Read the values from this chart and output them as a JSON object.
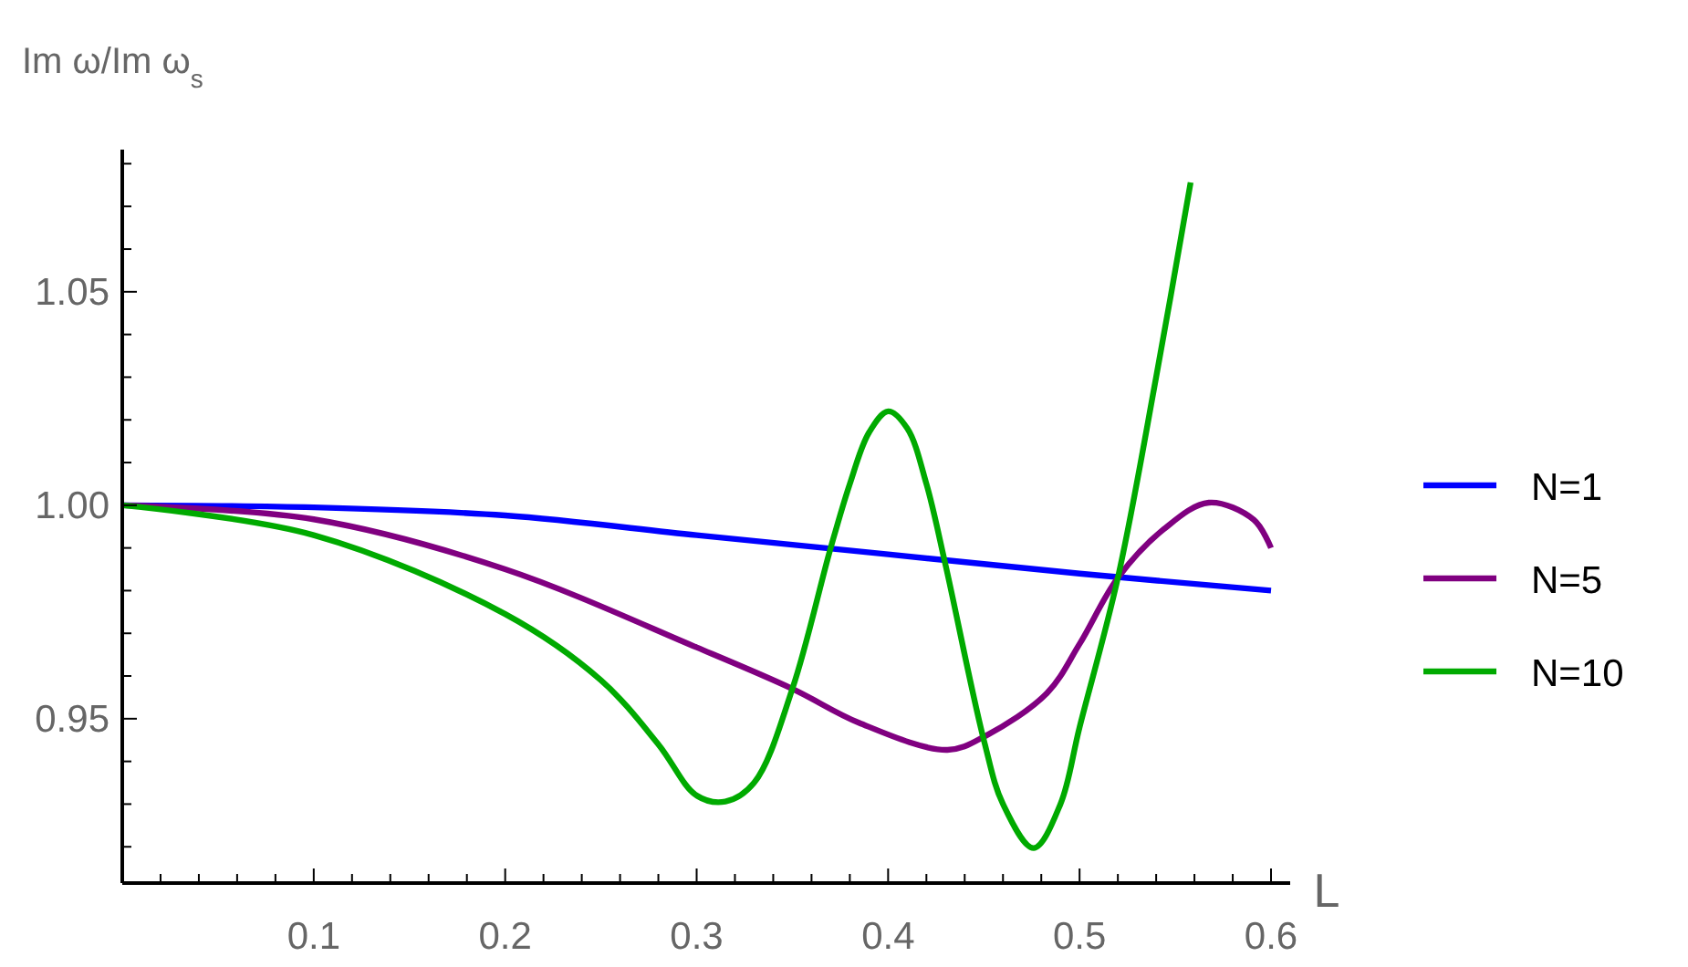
{
  "chart_data": {
    "type": "line",
    "ylabel": "Im ω/Im ω$_{s}$",
    "xlabel": "L",
    "xlim": [
      0,
      0.61
    ],
    "ylim": [
      0.9115,
      1.0833
    ],
    "xticks": [
      {
        "value": 0.02,
        "label": null
      },
      {
        "value": 0.04,
        "label": null
      },
      {
        "value": 0.06,
        "label": null
      },
      {
        "value": 0.08,
        "label": null
      },
      0.1,
      {
        "value": 0.12,
        "label": null
      },
      {
        "value": 0.14,
        "label": null
      },
      {
        "value": 0.16,
        "label": null
      },
      {
        "value": 0.18,
        "label": null
      },
      0.2,
      {
        "value": 0.22,
        "label": null
      },
      {
        "value": 0.24,
        "label": null
      },
      {
        "value": 0.26,
        "label": null
      },
      {
        "value": 0.28,
        "label": null
      },
      0.3,
      {
        "value": 0.32,
        "label": null
      },
      {
        "value": 0.34,
        "label": null
      },
      {
        "value": 0.36,
        "label": null
      },
      {
        "value": 0.38,
        "label": null
      },
      0.4,
      {
        "value": 0.42,
        "label": null
      },
      {
        "value": 0.44,
        "label": null
      },
      {
        "value": 0.46,
        "label": null
      },
      {
        "value": 0.48,
        "label": null
      },
      0.5,
      {
        "value": 0.52,
        "label": null
      },
      {
        "value": 0.54,
        "label": null
      },
      {
        "value": 0.56,
        "label": null
      },
      {
        "value": 0.58,
        "label": null
      },
      0.6
    ],
    "yticks": [
      {
        "value": 0.92,
        "label": null
      },
      {
        "value": 0.93,
        "label": null
      },
      {
        "value": 0.94,
        "label": null
      },
      {
        "value": 0.95,
        "label": "0.95"
      },
      {
        "value": 0.96,
        "label": null
      },
      {
        "value": 0.97,
        "label": null
      },
      {
        "value": 0.98,
        "label": null
      },
      {
        "value": 0.99,
        "label": null
      },
      {
        "value": 1.0,
        "label": "1.00"
      },
      {
        "value": 1.01,
        "label": null
      },
      {
        "value": 1.02,
        "label": null
      },
      {
        "value": 1.03,
        "label": null
      },
      {
        "value": 1.04,
        "label": null
      },
      1.05,
      {
        "value": 1.06,
        "label": null
      },
      {
        "value": 1.07,
        "label": null
      },
      {
        "value": 1.08,
        "label": null
      }
    ],
    "grid": false,
    "legend": "right",
    "line_style": "solid",
    "marker": "none",
    "series": [
      {
        "name": "N=1",
        "color": "#0000ff",
        "x": [
          0,
          0.1,
          0.2,
          0.3,
          0.4,
          0.5,
          0.6
        ],
        "values": [
          1,
          0.9995,
          0.9976,
          0.993,
          0.9885,
          0.984,
          0.98
        ]
      },
      {
        "name": "N=5",
        "color": "#800080",
        "x": [
          0,
          0.1,
          0.2,
          0.3,
          0.35,
          0.385,
          0.431,
          0.451,
          0.483,
          0.5,
          0.52,
          0.544,
          0.5675,
          0.591,
          0.6
        ],
        "values": [
          1,
          0.9967,
          0.985,
          0.9667,
          0.957,
          0.949,
          0.9427,
          0.946,
          0.956,
          0.9675,
          0.983,
          0.9944,
          1.0006,
          0.9966,
          0.99
        ]
      },
      {
        "name": "N=10",
        "color": "#00aa00",
        "x": [
          0,
          0.1,
          0.2,
          0.25,
          0.28,
          0.3,
          0.315,
          0.33,
          0.35,
          0.37,
          0.38,
          0.39,
          0.4,
          0.41,
          0.42,
          0.43,
          0.45,
          0.46,
          0.476,
          0.49,
          0.5,
          0.52,
          0.54,
          0.558
        ],
        "values": [
          1,
          0.993,
          0.9745,
          0.959,
          0.944,
          0.932,
          0.9306,
          0.935,
          0.957,
          0.99,
          1.005,
          1.017,
          1.022,
          1.018,
          1.005,
          0.986,
          0.945,
          0.93,
          0.9197,
          0.93,
          0.948,
          0.983,
          1.03,
          1.0756
        ]
      }
    ]
  }
}
